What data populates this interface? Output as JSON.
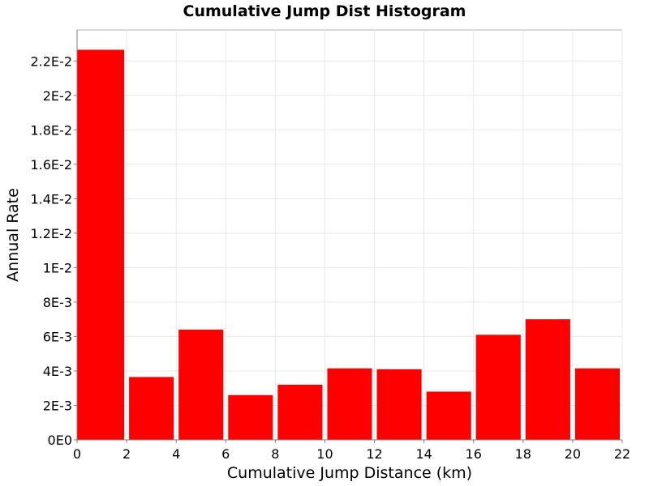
{
  "chart_data": {
    "type": "bar",
    "title": "Cumulative Jump Dist Histogram",
    "xlabel": "Cumulative Jump Distance (km)",
    "ylabel": "Annual Rate",
    "xlim": [
      0,
      22
    ],
    "ylim": [
      0,
      0.0238
    ],
    "x_ticks": [
      0,
      2,
      4,
      6,
      8,
      10,
      12,
      14,
      16,
      18,
      20,
      22
    ],
    "x_tick_labels": [
      "0",
      "2",
      "4",
      "6",
      "8",
      "10",
      "12",
      "14",
      "16",
      "18",
      "20",
      "22"
    ],
    "y_ticks": [
      0,
      0.002,
      0.004,
      0.006,
      0.008,
      0.01,
      0.012,
      0.014,
      0.016,
      0.018,
      0.02,
      0.022
    ],
    "y_tick_labels": [
      "0E0",
      "2E-3",
      "4E-3",
      "6E-3",
      "8E-3",
      "1E-2",
      "1.2E-2",
      "1.4E-2",
      "1.6E-2",
      "1.8E-2",
      "2E-2",
      "2.2E-2"
    ],
    "grid": true,
    "bar_color": "#ff0000",
    "bins": [
      {
        "x0": 0,
        "x1": 2,
        "value": 0.02265
      },
      {
        "x0": 2,
        "x1": 4,
        "value": 0.00365
      },
      {
        "x0": 4,
        "x1": 6,
        "value": 0.0064
      },
      {
        "x0": 6,
        "x1": 8,
        "value": 0.0026
      },
      {
        "x0": 8,
        "x1": 10,
        "value": 0.0032
      },
      {
        "x0": 10,
        "x1": 12,
        "value": 0.00415
      },
      {
        "x0": 12,
        "x1": 14,
        "value": 0.0041
      },
      {
        "x0": 14,
        "x1": 16,
        "value": 0.0028
      },
      {
        "x0": 16,
        "x1": 18,
        "value": 0.0061
      },
      {
        "x0": 18,
        "x1": 20,
        "value": 0.007
      },
      {
        "x0": 20,
        "x1": 22,
        "value": 0.00415
      }
    ]
  }
}
